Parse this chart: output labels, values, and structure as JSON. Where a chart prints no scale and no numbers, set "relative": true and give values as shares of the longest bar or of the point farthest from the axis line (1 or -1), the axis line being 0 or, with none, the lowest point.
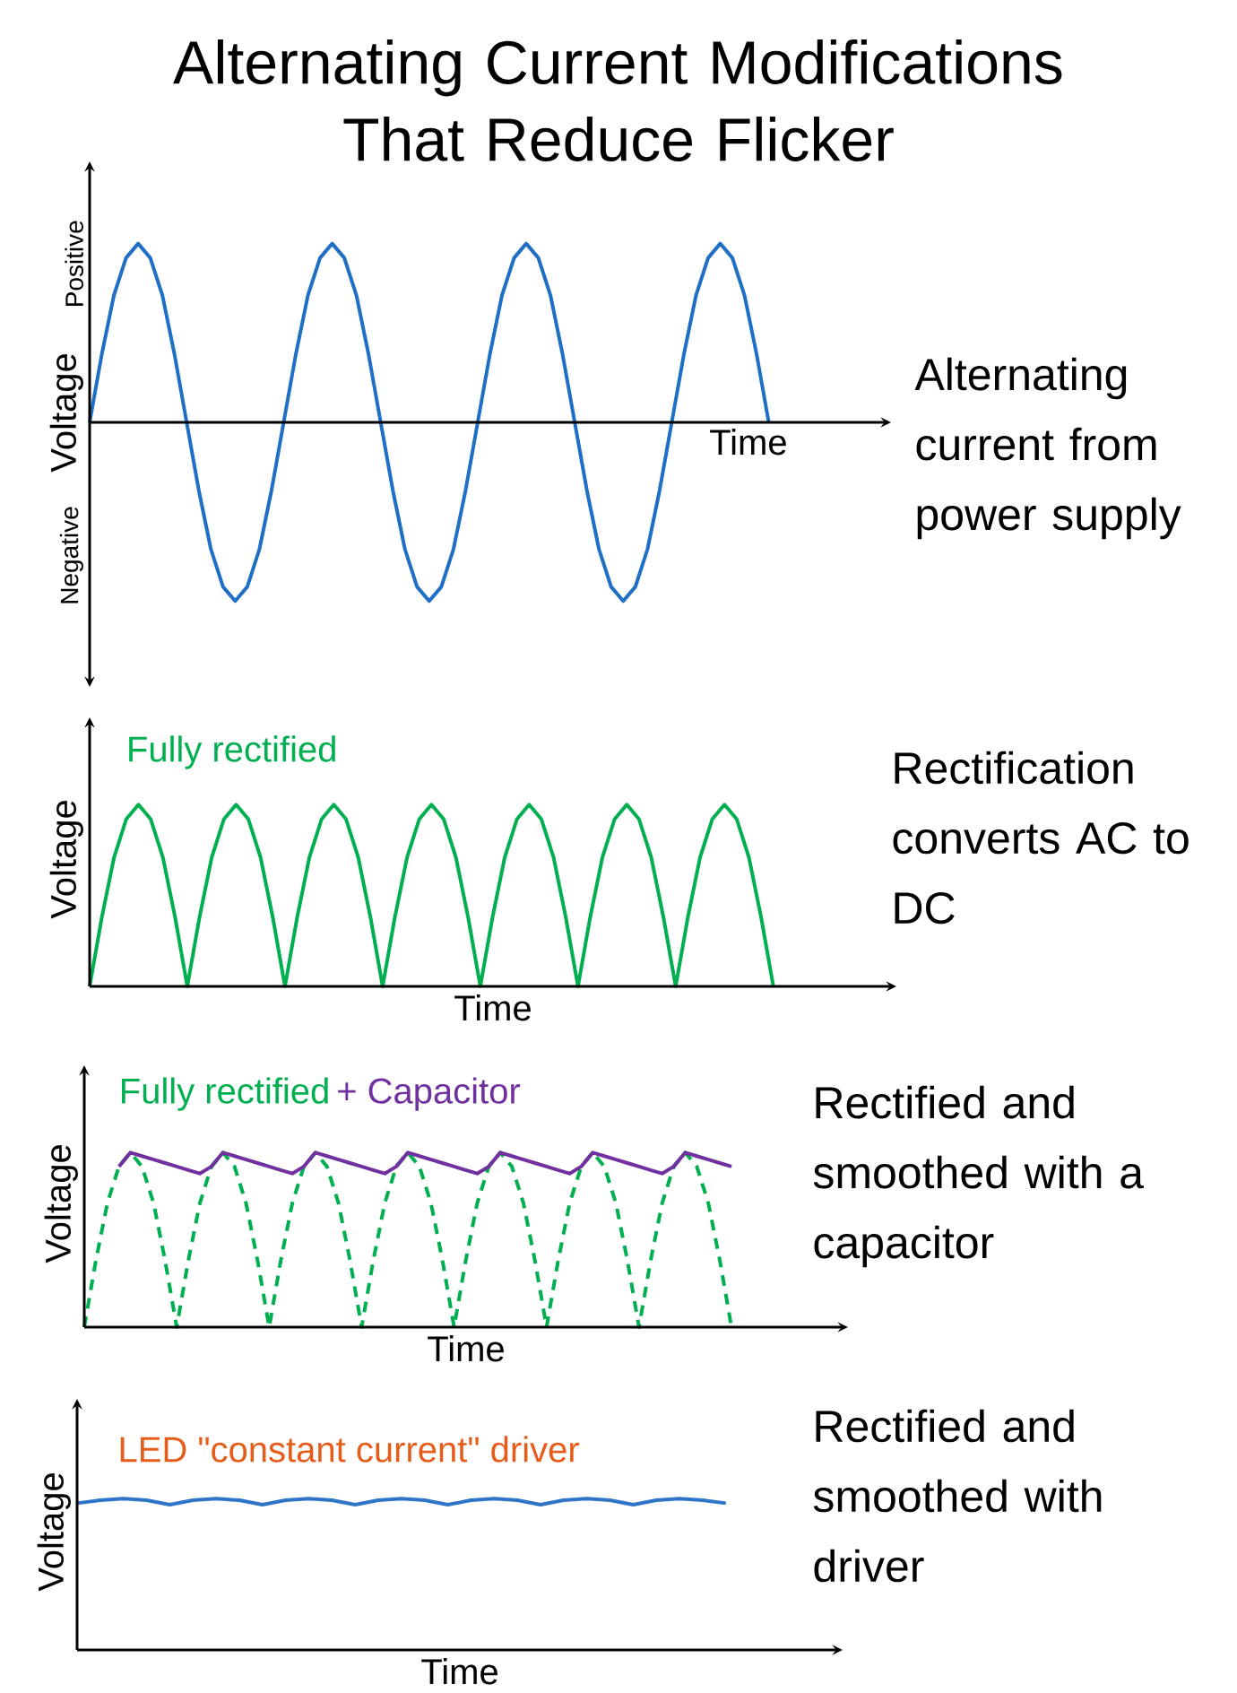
{
  "chart_data": [
    {
      "type": "line",
      "title": "Alternating Current Modifications That Reduce Flicker",
      "xlabel": "Time",
      "ylabel": "Voltage",
      "annotations": [
        "Alternating current from power supply",
        "Positive",
        "Negative"
      ],
      "relative": true,
      "categories": [
        null,
        null,
        null,
        null,
        null,
        null,
        null,
        null,
        null,
        null,
        null,
        null,
        null,
        null,
        null,
        null,
        null,
        null,
        null,
        null,
        null,
        null,
        null,
        null,
        null,
        null,
        null,
        null,
        null,
        null,
        null,
        null,
        null,
        null,
        null,
        null,
        null,
        null,
        null,
        null,
        null,
        null,
        null,
        null,
        null,
        null,
        null,
        null,
        null,
        null,
        null,
        null,
        null,
        null,
        null,
        null,
        null
      ],
      "series": [
        {
          "color": "#1f6fc6",
          "values": [
            0,
            0.38,
            0.71,
            0.92,
            1,
            0.92,
            0.71,
            0.38,
            0,
            -0.38,
            -0.71,
            -0.92,
            -1,
            -0.92,
            -0.71,
            -0.38,
            0,
            0.38,
            0.71,
            0.92,
            1,
            0.92,
            0.71,
            0.38,
            0,
            -0.38,
            -0.71,
            -0.92,
            -1,
            -0.92,
            -0.71,
            -0.38,
            0,
            0.38,
            0.71,
            0.92,
            1,
            0.92,
            0.71,
            0.38,
            0,
            -0.38,
            -0.71,
            -0.92,
            -1,
            -0.92,
            -0.71,
            -0.38,
            0,
            0.38,
            0.71,
            0.92,
            1,
            0.92,
            0.71,
            0.38,
            0
          ]
        }
      ]
    },
    {
      "type": "line",
      "xlabel": "Time",
      "ylabel": "Voltage",
      "annotations": [
        "Rectification converts AC to DC"
      ],
      "relative": true,
      "categories": [
        null,
        null,
        null,
        null,
        null,
        null,
        null,
        null,
        null,
        null,
        null,
        null,
        null,
        null,
        null,
        null,
        null,
        null,
        null,
        null,
        null,
        null,
        null,
        null,
        null,
        null,
        null,
        null,
        null,
        null,
        null,
        null,
        null,
        null,
        null,
        null,
        null,
        null,
        null,
        null,
        null,
        null,
        null,
        null,
        null,
        null,
        null,
        null,
        null,
        null,
        null,
        null,
        null,
        null,
        null,
        null,
        null
      ],
      "series": [
        {
          "name": "Fully rectified",
          "color": "#00b050",
          "values": [
            0,
            0.38,
            0.71,
            0.92,
            1,
            0.92,
            0.71,
            0.38,
            0,
            0.38,
            0.71,
            0.92,
            1,
            0.92,
            0.71,
            0.38,
            0,
            0.38,
            0.71,
            0.92,
            1,
            0.92,
            0.71,
            0.38,
            0,
            0.38,
            0.71,
            0.92,
            1,
            0.92,
            0.71,
            0.38,
            0,
            0.38,
            0.71,
            0.92,
            1,
            0.92,
            0.71,
            0.38,
            0,
            0.38,
            0.71,
            0.92,
            1,
            0.92,
            0.71,
            0.38,
            0,
            0.38,
            0.71,
            0.92,
            1,
            0.92,
            0.71,
            0.38,
            0
          ]
        }
      ]
    },
    {
      "type": "line",
      "xlabel": "Time",
      "ylabel": "Voltage",
      "annotations": [
        "Rectified and smoothed with a capacitor"
      ],
      "relative": true,
      "categories": [
        null,
        null,
        null,
        null,
        null,
        null,
        null,
        null,
        null,
        null,
        null,
        null,
        null,
        null,
        null,
        null,
        null,
        null,
        null,
        null,
        null,
        null,
        null,
        null,
        null,
        null,
        null,
        null,
        null,
        null,
        null,
        null,
        null,
        null,
        null,
        null,
        null,
        null,
        null,
        null,
        null,
        null,
        null,
        null,
        null,
        null,
        null,
        null,
        null,
        null,
        null,
        null,
        null,
        null,
        null,
        null,
        null
      ],
      "series": [
        {
          "name": "Fully rectified",
          "color": "#00b050",
          "line_style": "dashed",
          "values": [
            0,
            0.38,
            0.71,
            0.92,
            1,
            0.92,
            0.71,
            0.38,
            0,
            0.38,
            0.71,
            0.92,
            1,
            0.92,
            0.71,
            0.38,
            0,
            0.38,
            0.71,
            0.92,
            1,
            0.92,
            0.71,
            0.38,
            0,
            0.38,
            0.71,
            0.92,
            1,
            0.92,
            0.71,
            0.38,
            0,
            0.38,
            0.71,
            0.92,
            1,
            0.92,
            0.71,
            0.38,
            0,
            0.38,
            0.71,
            0.92,
            1,
            0.92,
            0.71,
            0.38,
            0,
            0.38,
            0.71,
            0.92,
            1,
            0.92,
            0.71,
            0.38,
            0
          ]
        },
        {
          "name": "+ Capacitor",
          "color": "#7030a0",
          "line_style": "solid",
          "values": [
            null,
            null,
            null,
            0.92,
            1,
            0.98,
            0.96,
            0.94,
            0.92,
            0.9,
            0.88,
            0.92,
            1,
            0.98,
            0.96,
            0.94,
            0.92,
            0.9,
            0.88,
            0.92,
            1,
            0.98,
            0.96,
            0.94,
            0.92,
            0.9,
            0.88,
            0.92,
            1,
            0.98,
            0.96,
            0.94,
            0.92,
            0.9,
            0.88,
            0.92,
            1,
            0.98,
            0.96,
            0.94,
            0.92,
            0.9,
            0.88,
            0.92,
            1,
            0.98,
            0.96,
            0.94,
            0.92,
            0.9,
            0.88,
            0.92,
            1,
            0.98,
            0.96,
            0.94,
            0.92
          ]
        }
      ]
    },
    {
      "type": "line",
      "xlabel": "Time",
      "ylabel": "Voltage",
      "annotations": [
        "Rectified and smoothed with driver",
        "LED \"constant current\" driver"
      ],
      "relative": true,
      "categories": [
        null,
        null,
        null,
        null,
        null,
        null,
        null,
        null,
        null,
        null,
        null,
        null,
        null,
        null,
        null,
        null,
        null,
        null,
        null,
        null,
        null,
        null,
        null,
        null,
        null,
        null,
        null,
        null,
        null
      ],
      "series": [
        {
          "color": "#2e75c8",
          "values": [
            0.97,
            0.99,
            1,
            0.99,
            0.96,
            0.99,
            1,
            0.99,
            0.96,
            0.99,
            1,
            0.99,
            0.96,
            0.99,
            1,
            0.99,
            0.96,
            0.99,
            1,
            0.99,
            0.96,
            0.99,
            1,
            0.99,
            0.96,
            0.99,
            1,
            0.99,
            0.97
          ]
        }
      ]
    }
  ]
}
